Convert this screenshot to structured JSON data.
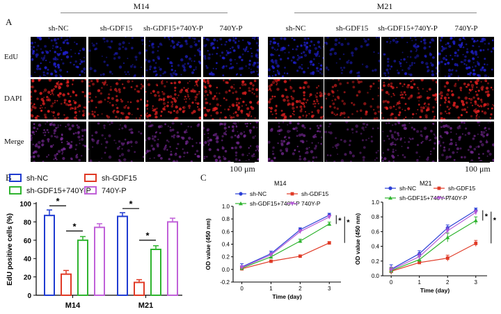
{
  "panel_a": {
    "letter": "A",
    "groups": [
      {
        "title": "M14",
        "columns": [
          "sh-NC",
          "sh-GDF15",
          "sh-GDF15+740Y-P",
          "740Y-P"
        ]
      },
      {
        "title": "M21",
        "columns": [
          "sh-NC",
          "sh-GDF15",
          "sh-GDF15+740Y-P",
          "740Y-P"
        ]
      }
    ],
    "rows": [
      "EdU",
      "DAPI",
      "Merge"
    ],
    "scale_bar": "100 μm",
    "colors": {
      "edu": "#2020d0",
      "dapi": "#e02020",
      "merge": "#7a2a9a",
      "background": "#000000"
    },
    "tile_brightness": {
      "M14": {
        "EdU": [
          0.85,
          0.25,
          0.6,
          0.75
        ],
        "DAPI": [
          0.9,
          0.6,
          0.85,
          0.8
        ],
        "Merge": [
          0.7,
          0.3,
          0.55,
          0.65
        ]
      },
      "M21": {
        "EdU": [
          0.8,
          0.2,
          0.5,
          0.85
        ],
        "DAPI": [
          0.75,
          0.35,
          0.8,
          0.85
        ],
        "Merge": [
          0.55,
          0.2,
          0.5,
          0.6
        ]
      }
    }
  },
  "panel_b": {
    "letter": "B"
  },
  "panel_c": {
    "letter": "C"
  },
  "chart_data": [
    {
      "type": "bar",
      "title": "",
      "xlabel": "",
      "ylabel": "EdU positive cells (%)",
      "categories": [
        "M14",
        "M21"
      ],
      "ylim": [
        0,
        100
      ],
      "yticks": [
        0,
        20,
        40,
        60,
        80,
        100
      ],
      "legend_position": "top",
      "series": [
        {
          "name": "sh-NC",
          "color": "#1f3bd1",
          "values": [
            87,
            86
          ],
          "errors": [
            6,
            4
          ]
        },
        {
          "name": "sh-GDF15",
          "color": "#e03a26",
          "values": [
            23,
            14
          ],
          "errors": [
            4,
            3
          ]
        },
        {
          "name": "sh-GDF15+740Y-P",
          "color": "#2fb42f",
          "values": [
            60,
            50
          ],
          "errors": [
            4,
            4
          ]
        },
        {
          "name": "740Y-P",
          "color": "#c060d8",
          "values": [
            74,
            80
          ],
          "errors": [
            4,
            4
          ]
        }
      ],
      "significance": [
        "*",
        "*",
        "*",
        "*"
      ]
    },
    {
      "type": "line",
      "title": "M14",
      "xlabel": "Time (day)",
      "ylabel": "OD value (450 nm)",
      "x": [
        0,
        1,
        2,
        3
      ],
      "xlim": [
        -0.3,
        3.4
      ],
      "ylim": [
        -0.2,
        1.0
      ],
      "yticks": [
        -0.2,
        0.0,
        0.2,
        0.4,
        0.6,
        0.8,
        1.0
      ],
      "legend_position": "top",
      "series": [
        {
          "name": "sh-NC",
          "color": "#2a3fd6",
          "marker": "circle",
          "values": [
            0.04,
            0.25,
            0.63,
            0.86
          ],
          "errors": [
            0.05,
            0.04,
            0.03,
            0.03
          ]
        },
        {
          "name": "sh-GDF15",
          "color": "#e03a26",
          "marker": "square",
          "values": [
            0.01,
            0.13,
            0.21,
            0.42
          ],
          "errors": [
            0.02,
            0.01,
            0.01,
            0.02
          ]
        },
        {
          "name": "sh-GDF15+740Y-P",
          "color": "#2fb42f",
          "marker": "triangle",
          "values": [
            0.02,
            0.2,
            0.45,
            0.72
          ],
          "errors": [
            0.03,
            0.03,
            0.03,
            0.03
          ]
        },
        {
          "name": "740Y-P",
          "color": "#b45ad8",
          "marker": "triangle-down",
          "values": [
            0.03,
            0.23,
            0.6,
            0.83
          ],
          "errors": [
            0.03,
            0.03,
            0.03,
            0.03
          ]
        }
      ],
      "significance": [
        "*",
        "*"
      ]
    },
    {
      "type": "line",
      "title": "M21",
      "xlabel": "Time (day)",
      "ylabel": "OD value (450 nm)",
      "x": [
        0,
        1,
        2,
        3
      ],
      "xlim": [
        -0.3,
        3.4
      ],
      "ylim": [
        0,
        1.0
      ],
      "yticks": [
        0.0,
        0.2,
        0.4,
        0.6,
        0.8,
        1.0
      ],
      "legend_position": "top",
      "series": [
        {
          "name": "sh-NC",
          "color": "#2a3fd6",
          "marker": "circle",
          "values": [
            0.09,
            0.3,
            0.65,
            0.89
          ],
          "errors": [
            0.06,
            0.04,
            0.04,
            0.03
          ]
        },
        {
          "name": "sh-GDF15",
          "color": "#e03a26",
          "marker": "square",
          "values": [
            0.06,
            0.18,
            0.24,
            0.44
          ],
          "errors": [
            0.04,
            0.02,
            0.04,
            0.04
          ]
        },
        {
          "name": "sh-GDF15+740Y-P",
          "color": "#2fb42f",
          "marker": "triangle",
          "values": [
            0.07,
            0.22,
            0.52,
            0.75
          ],
          "errors": [
            0.04,
            0.04,
            0.06,
            0.05
          ]
        },
        {
          "name": "740Y-P",
          "color": "#b45ad8",
          "marker": "triangle-down",
          "values": [
            0.08,
            0.26,
            0.61,
            0.86
          ],
          "errors": [
            0.04,
            0.04,
            0.04,
            0.03
          ]
        }
      ],
      "significance": [
        "*",
        "*"
      ]
    }
  ]
}
